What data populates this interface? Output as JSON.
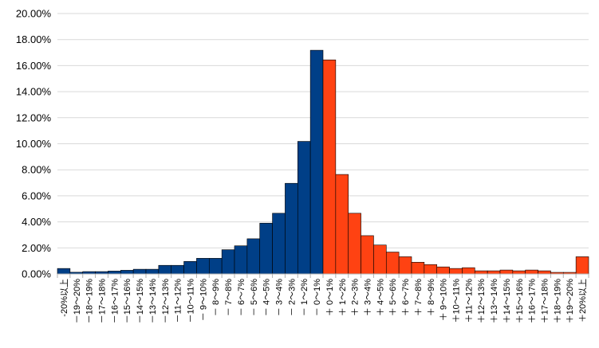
{
  "chart_data": {
    "type": "bar",
    "ylim": [
      0,
      20
    ],
    "y_tick_labels": [
      "0.00%",
      "2.00%",
      "4.00%",
      "6.00%",
      "8.00%",
      "10.00%",
      "12.00%",
      "14.00%",
      "16.00%",
      "18.00%",
      "20.00%"
    ],
    "grid": true,
    "categories": [
      "-20%以上",
      "－19～20%",
      "－18～19%",
      "－17～18%",
      "－16～17%",
      "－15～16%",
      "－14～15%",
      "－13～14%",
      "－12～13%",
      "－11～12%",
      "－10～11%",
      "－ 9～10%",
      "－ 8～9%",
      "－ 7～8%",
      "－ 6～7%",
      "－ 5～6%",
      "－ 4～5%",
      "－ 3～4%",
      "－ 2～3%",
      "－ 1～2%",
      "－ 0～1%",
      "＋ 0～1%",
      "＋ 1～2%",
      "＋ 2～3%",
      "＋ 3～4%",
      "＋ 4～5%",
      "＋ 5～6%",
      "＋ 6～7%",
      "＋ 7～8%",
      "＋ 8～9%",
      "＋ 9～10%",
      "＋10～11%",
      "＋11～12%",
      "＋12～13%",
      "＋13～14%",
      "＋14～15%",
      "＋15～16%",
      "＋16～17%",
      "＋17～18%",
      "＋18～19%",
      "＋19～20%",
      "＋20%以上"
    ],
    "values": [
      0.42,
      0.13,
      0.18,
      0.18,
      0.22,
      0.28,
      0.36,
      0.36,
      0.66,
      0.66,
      0.96,
      1.2,
      1.2,
      1.86,
      2.16,
      2.7,
      3.9,
      4.66,
      6.96,
      10.18,
      17.18,
      16.44,
      7.64,
      4.66,
      2.94,
      2.22,
      1.68,
      1.32,
      0.9,
      0.72,
      0.54,
      0.42,
      0.48,
      0.24,
      0.24,
      0.3,
      0.24,
      0.3,
      0.24,
      0.12,
      0.12,
      1.32
    ],
    "colors": {
      "negative": "#003f87",
      "positive": "#ff4212"
    }
  }
}
